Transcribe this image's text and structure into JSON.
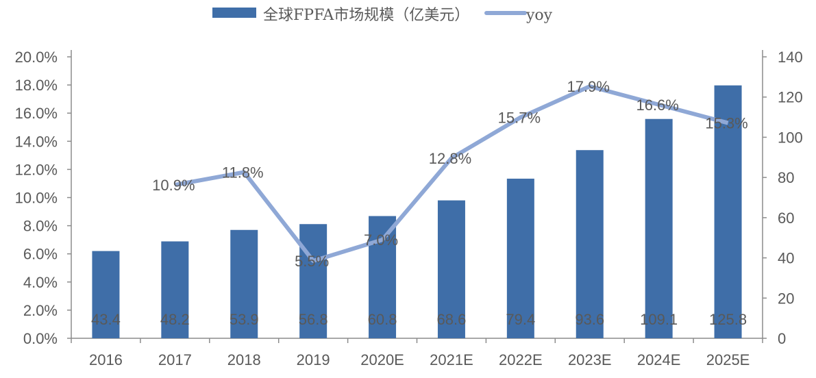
{
  "chart_data": {
    "type": "bar+line",
    "categories": [
      "2016",
      "2017",
      "2018",
      "2019",
      "2020E",
      "2021E",
      "2022E",
      "2023E",
      "2024E",
      "2025E"
    ],
    "series": [
      {
        "name": "全球FPFA市场规模（亿美元）",
        "type": "bar",
        "axis": "right",
        "values": [
          43.4,
          48.2,
          53.9,
          56.8,
          60.8,
          68.6,
          79.4,
          93.6,
          109.1,
          125.8
        ],
        "labels": [
          "43.4",
          "48.2",
          "53.9",
          "56.8",
          "60.8",
          "68.6",
          "79.4",
          "93.6",
          "109.1",
          "125.8"
        ]
      },
      {
        "name": "yoy",
        "type": "line",
        "axis": "left",
        "values": [
          null,
          10.9,
          11.8,
          5.5,
          7.0,
          12.8,
          15.7,
          17.9,
          16.6,
          15.3
        ],
        "labels": [
          "",
          "10.9%",
          "11.8%",
          "5.5%",
          "7.0%",
          "12.8%",
          "15.7%",
          "17.9%",
          "16.6%",
          "15.3%"
        ]
      }
    ],
    "left_axis": {
      "range": [
        0,
        20
      ],
      "ticks": [
        "0.0%",
        "2.0%",
        "4.0%",
        "6.0%",
        "8.0%",
        "10.0%",
        "12.0%",
        "14.0%",
        "16.0%",
        "18.0%",
        "20.0%"
      ]
    },
    "right_axis": {
      "range": [
        0,
        140
      ],
      "ticks": [
        "0",
        "20",
        "40",
        "60",
        "80",
        "100",
        "120",
        "140"
      ]
    },
    "legend_placement": "top",
    "grid": false,
    "colors": {
      "bar": "#3f6ea8",
      "line": "#8fa8d6",
      "text": "#595959",
      "axis": "#8c8c8c"
    }
  }
}
